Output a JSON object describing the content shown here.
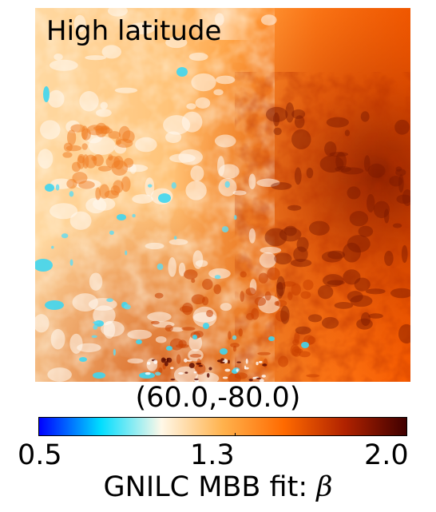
{
  "map": {
    "title": "High latitude",
    "center_coordinates": "(60.0,-80.0)"
  },
  "colorbar": {
    "min_label": "0.5",
    "mid_label": "1.3",
    "max_label": "2.0",
    "min": 0.5,
    "mid": 1.3,
    "max": 2.0,
    "label_prefix": "GNILC MBB fit: ",
    "label_symbol": "β",
    "colormap": [
      "#0000ff",
      "#00ddff",
      "#fff8e8",
      "#ffb24d",
      "#ff6a00",
      "#b02200",
      "#400000"
    ]
  },
  "colors": {
    "low_beta": "#00ccee",
    "mid_beta": "#ffd08c",
    "high_beta": "#e05000",
    "very_high_beta": "#6a0c00"
  }
}
